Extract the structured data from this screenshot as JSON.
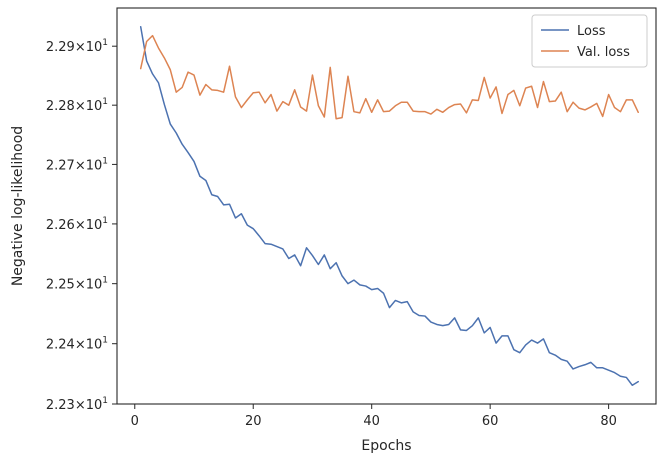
{
  "chart_data": {
    "type": "line",
    "xlabel": "Epochs",
    "ylabel": "Negative log-likelihood",
    "xlim": [
      -3,
      88
    ],
    "ylim": [
      22.3,
      22.965
    ],
    "yscale": "log",
    "x_ticks": [
      0,
      20,
      40,
      60,
      80
    ],
    "y_ticks": [
      {
        "value": 22.3,
        "mantissa": "2.23",
        "exp": "1"
      },
      {
        "value": 22.4,
        "mantissa": "2.24",
        "exp": "1"
      },
      {
        "value": 22.5,
        "mantissa": "2.25",
        "exp": "1"
      },
      {
        "value": 22.6,
        "mantissa": "2.26",
        "exp": "1"
      },
      {
        "value": 22.7,
        "mantissa": "2.27",
        "exp": "1"
      },
      {
        "value": 22.8,
        "mantissa": "2.28",
        "exp": "1"
      },
      {
        "value": 22.9,
        "mantissa": "2.29",
        "exp": "1"
      }
    ],
    "grid": false,
    "legend_position": "top-right",
    "series": [
      {
        "name": "Loss",
        "color": "#4c72b0",
        "x": [
          1,
          2,
          3,
          4,
          5,
          6,
          7,
          8,
          9,
          10,
          11,
          12,
          13,
          14,
          15,
          16,
          17,
          18,
          19,
          20,
          21,
          22,
          23,
          24,
          25,
          26,
          27,
          28,
          29,
          30,
          31,
          32,
          33,
          34,
          35,
          36,
          37,
          38,
          39,
          40,
          41,
          42,
          43,
          44,
          45,
          46,
          47,
          48,
          49,
          50,
          51,
          52,
          53,
          54,
          55,
          56,
          57,
          58,
          59,
          60,
          61,
          62,
          63,
          64,
          65,
          66,
          67,
          68,
          69,
          70,
          71,
          72,
          73,
          74,
          75,
          76,
          77,
          78,
          79,
          80,
          81,
          82,
          83,
          84,
          85
        ],
        "values": [
          22.933,
          22.875,
          22.853,
          22.838,
          22.801,
          22.768,
          22.753,
          22.734,
          22.72,
          22.705,
          22.68,
          22.673,
          22.649,
          22.646,
          22.632,
          22.633,
          22.61,
          22.617,
          22.598,
          22.592,
          22.58,
          22.567,
          22.566,
          22.562,
          22.558,
          22.542,
          22.548,
          22.53,
          22.56,
          22.547,
          22.532,
          22.548,
          22.525,
          22.535,
          22.513,
          22.5,
          22.506,
          22.498,
          22.496,
          22.49,
          22.492,
          22.484,
          22.46,
          22.472,
          22.468,
          22.47,
          22.453,
          22.447,
          22.446,
          22.436,
          22.432,
          22.43,
          22.432,
          22.443,
          22.423,
          22.422,
          22.43,
          22.443,
          22.418,
          22.427,
          22.401,
          22.413,
          22.413,
          22.39,
          22.385,
          22.398,
          22.406,
          22.401,
          22.408,
          22.385,
          22.381,
          22.374,
          22.371,
          22.358,
          22.362,
          22.365,
          22.369,
          22.36,
          22.36,
          22.356,
          22.352,
          22.346,
          22.344,
          22.331,
          22.337
        ]
      },
      {
        "name": "Val. loss",
        "color": "#dd8452",
        "x": [
          1,
          2,
          3,
          4,
          5,
          6,
          7,
          8,
          9,
          10,
          11,
          12,
          13,
          14,
          15,
          16,
          17,
          18,
          19,
          20,
          21,
          22,
          23,
          24,
          25,
          26,
          27,
          28,
          29,
          30,
          31,
          32,
          33,
          34,
          35,
          36,
          37,
          38,
          39,
          40,
          41,
          42,
          43,
          44,
          45,
          46,
          47,
          48,
          49,
          50,
          51,
          52,
          53,
          54,
          55,
          56,
          57,
          58,
          59,
          60,
          61,
          62,
          63,
          64,
          65,
          66,
          67,
          68,
          69,
          70,
          71,
          72,
          73,
          74,
          75,
          76,
          77,
          78,
          79,
          80,
          81,
          82,
          83,
          84,
          85
        ],
        "values": [
          22.862,
          22.908,
          22.918,
          22.897,
          22.88,
          22.86,
          22.822,
          22.83,
          22.856,
          22.851,
          22.817,
          22.835,
          22.826,
          22.825,
          22.822,
          22.866,
          22.814,
          22.796,
          22.809,
          22.821,
          22.822,
          22.804,
          22.818,
          22.79,
          22.806,
          22.8,
          22.826,
          22.797,
          22.79,
          22.851,
          22.799,
          22.78,
          22.864,
          22.777,
          22.779,
          22.849,
          22.789,
          22.787,
          22.811,
          22.788,
          22.809,
          22.789,
          22.79,
          22.799,
          22.805,
          22.805,
          22.79,
          22.789,
          22.789,
          22.785,
          22.793,
          22.788,
          22.796,
          22.801,
          22.802,
          22.787,
          22.809,
          22.808,
          22.847,
          22.812,
          22.831,
          22.786,
          22.818,
          22.825,
          22.799,
          22.829,
          22.832,
          22.796,
          22.84,
          22.806,
          22.807,
          22.822,
          22.789,
          22.805,
          22.795,
          22.792,
          22.797,
          22.803,
          22.781,
          22.818,
          22.796,
          22.789,
          22.809,
          22.809,
          22.788
        ]
      }
    ]
  }
}
